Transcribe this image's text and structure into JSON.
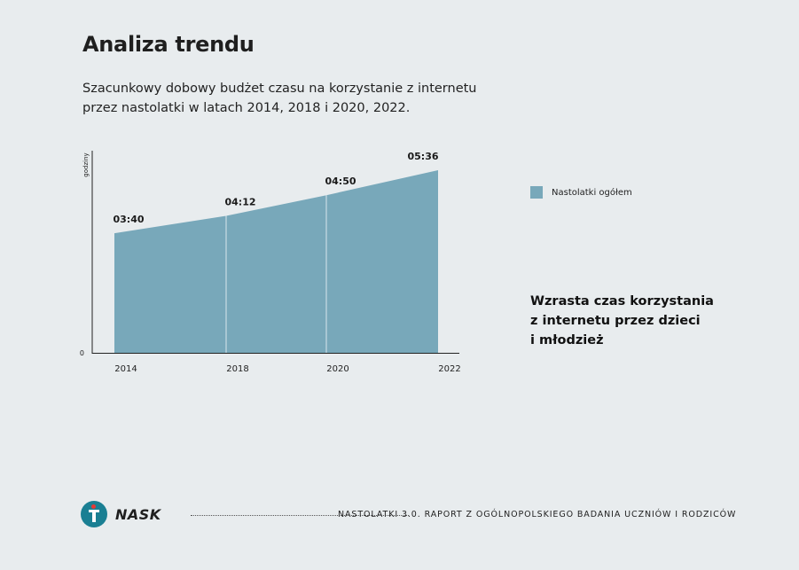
{
  "header": {
    "title": "Analiza trendu",
    "subtitle_line1": "Szacunkowy dobowy budżet czasu na korzystanie z internetu",
    "subtitle_line2": "przez nastolatki w latach 2014, 2018 i 2020, 2022."
  },
  "chart_data": {
    "type": "area",
    "x": [
      "2014",
      "2018",
      "2020",
      "2022"
    ],
    "series": [
      {
        "name": "Nastolatki ogółem",
        "values_minutes": [
          220,
          252,
          290,
          336
        ],
        "labels": [
          "03:40",
          "04:12",
          "04:50",
          "05:36"
        ]
      }
    ],
    "ylabel": "godziny",
    "y_tick_labels": [
      "0"
    ],
    "ylim_minutes": [
      0,
      380
    ],
    "grid": false,
    "legend": "right",
    "colors": {
      "area": "#78a8ba",
      "divider": "#d8e6ec",
      "axis": "#222222"
    }
  },
  "callout": {
    "line1": "Wzrasta czas korzystania",
    "line2": "z internetu przez dzieci",
    "line3": "i młodzież"
  },
  "footer": {
    "logo_text": "NASK",
    "report_text": "NASTOLATKI 3.0. RAPORT Z OGÓLNOPOLSKIEGO BADANIA UCZNIÓW I RODZICÓW"
  }
}
